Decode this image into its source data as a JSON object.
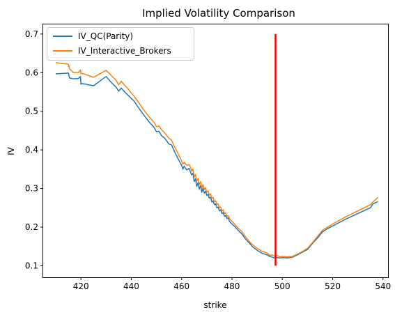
{
  "chart_data": {
    "type": "line",
    "title": "Implied Volatility Comparison",
    "xlabel": "strike",
    "ylabel": "IV",
    "xlim": [
      405,
      542
    ],
    "ylim": [
      0.07,
      0.725
    ],
    "xticks": [
      420,
      440,
      460,
      480,
      500,
      520,
      540
    ],
    "yticks": [
      0.1,
      0.2,
      0.3,
      0.4,
      0.5,
      0.6,
      0.7
    ],
    "grid": false,
    "legend_position": "top-left",
    "series": [
      {
        "name": "IV_QC(Parity)",
        "color": "#1f77b4",
        "x": [
          410,
          415,
          415.5,
          417,
          419,
          419.8,
          420,
          420.3,
          421,
          422,
          425,
          430,
          432,
          434,
          435,
          436,
          437,
          438,
          439,
          440,
          441,
          443,
          445,
          447,
          449,
          450,
          451,
          452,
          453,
          454,
          455,
          456,
          457,
          458,
          459,
          460,
          460.5,
          461,
          462,
          463,
          463.5,
          464,
          464.5,
          465,
          465.5,
          466,
          466.5,
          467,
          467.5,
          468,
          468.5,
          469,
          469.5,
          470,
          470.5,
          471,
          471.5,
          472,
          472.5,
          473,
          473.5,
          474,
          474.5,
          475,
          475.5,
          476,
          476.5,
          477,
          477.5,
          478,
          478.5,
          479,
          480,
          481,
          482,
          483,
          484,
          485,
          486,
          487,
          488,
          490,
          492,
          494,
          495,
          496,
          497,
          498,
          499,
          500,
          502,
          504,
          506,
          508,
          510,
          512,
          514,
          516,
          518,
          520,
          525,
          530,
          535,
          536,
          538
        ],
        "y": [
          0.597,
          0.599,
          0.586,
          0.584,
          0.585,
          0.59,
          0.57,
          0.572,
          0.571,
          0.57,
          0.566,
          0.59,
          0.575,
          0.562,
          0.552,
          0.56,
          0.553,
          0.546,
          0.54,
          0.533,
          0.527,
          0.508,
          0.49,
          0.473,
          0.459,
          0.447,
          0.448,
          0.437,
          0.432,
          0.424,
          0.415,
          0.413,
          0.398,
          0.385,
          0.372,
          0.36,
          0.35,
          0.358,
          0.348,
          0.352,
          0.343,
          0.335,
          0.34,
          0.318,
          0.325,
          0.305,
          0.315,
          0.298,
          0.308,
          0.29,
          0.3,
          0.288,
          0.293,
          0.282,
          0.285,
          0.275,
          0.277,
          0.265,
          0.268,
          0.258,
          0.26,
          0.25,
          0.252,
          0.242,
          0.245,
          0.235,
          0.238,
          0.228,
          0.23,
          0.222,
          0.224,
          0.215,
          0.208,
          0.202,
          0.195,
          0.188,
          0.182,
          0.172,
          0.165,
          0.158,
          0.15,
          0.14,
          0.132,
          0.128,
          0.124,
          0.122,
          0.12,
          0.121,
          0.12,
          0.121,
          0.12,
          0.122,
          0.128,
          0.135,
          0.142,
          0.158,
          0.172,
          0.188,
          0.196,
          0.203,
          0.22,
          0.235,
          0.25,
          0.26,
          0.266
        ]
      },
      {
        "name": "IV_Interactive_Brokers",
        "color": "#ff7f0e",
        "x": [
          410,
          415,
          415.5,
          417,
          419,
          419.8,
          420,
          420.3,
          421,
          422,
          425,
          430,
          432,
          434,
          435,
          436,
          437,
          438,
          439,
          440,
          441,
          443,
          445,
          447,
          449,
          450,
          451,
          452,
          453,
          454,
          455,
          456,
          457,
          458,
          459,
          460,
          460.5,
          461,
          462,
          463,
          463.5,
          464,
          464.5,
          465,
          465.5,
          466,
          466.5,
          467,
          467.5,
          468,
          468.5,
          469,
          469.5,
          470,
          470.5,
          471,
          471.5,
          472,
          472.5,
          473,
          473.5,
          474,
          474.5,
          475,
          475.5,
          476,
          476.5,
          477,
          477.5,
          478,
          478.5,
          479,
          480,
          481,
          482,
          483,
          484,
          485,
          486,
          487,
          488,
          490,
          492,
          494,
          495,
          496,
          497,
          498,
          499,
          500,
          502,
          504,
          506,
          508,
          510,
          512,
          514,
          516,
          518,
          520,
          525,
          530,
          535,
          536,
          538
        ],
        "y": [
          0.626,
          0.622,
          0.61,
          0.6,
          0.6,
          0.607,
          0.597,
          0.598,
          0.597,
          0.595,
          0.588,
          0.606,
          0.593,
          0.58,
          0.568,
          0.578,
          0.57,
          0.563,
          0.556,
          0.547,
          0.54,
          0.522,
          0.503,
          0.486,
          0.472,
          0.46,
          0.462,
          0.452,
          0.446,
          0.438,
          0.43,
          0.425,
          0.41,
          0.398,
          0.385,
          0.371,
          0.363,
          0.368,
          0.36,
          0.362,
          0.355,
          0.345,
          0.35,
          0.33,
          0.336,
          0.318,
          0.326,
          0.31,
          0.318,
          0.3,
          0.31,
          0.297,
          0.302,
          0.29,
          0.294,
          0.283,
          0.286,
          0.274,
          0.277,
          0.266,
          0.268,
          0.258,
          0.26,
          0.25,
          0.252,
          0.242,
          0.245,
          0.235,
          0.237,
          0.228,
          0.23,
          0.222,
          0.215,
          0.208,
          0.2,
          0.194,
          0.188,
          0.178,
          0.17,
          0.162,
          0.155,
          0.145,
          0.137,
          0.133,
          0.127,
          0.128,
          0.124,
          0.126,
          0.123,
          0.124,
          0.123,
          0.124,
          0.13,
          0.137,
          0.145,
          0.16,
          0.176,
          0.192,
          0.2,
          0.208,
          0.226,
          0.242,
          0.258,
          0.265,
          0.277
        ]
      }
    ],
    "vline": {
      "x": 497.3,
      "y_start": 0.1,
      "y_end": 0.7,
      "color": "#ff0000"
    }
  }
}
